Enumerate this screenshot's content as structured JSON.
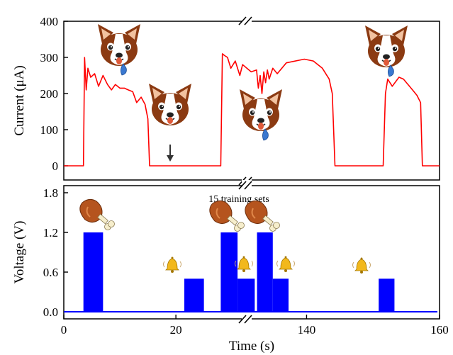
{
  "chart_data": [
    {
      "panel": "top",
      "type": "line",
      "title": "",
      "ylabel": "Current (μA)",
      "ylim": [
        0,
        400
      ],
      "yticks": [
        "0",
        "100",
        "200",
        "300",
        "400"
      ],
      "axis_break": true,
      "series": [
        {
          "color": "#ff0000",
          "x": [
            0,
            3.5,
            3.7,
            4.0,
            4.3,
            4.8,
            5.5,
            6.2,
            7.0,
            7.8,
            8.5,
            9.2,
            10.0,
            10.8,
            11.5,
            12.3,
            13.0,
            13.8,
            14.5,
            15.0,
            15.3,
            15.8,
            20,
            26,
            28.0,
            28.3,
            28.7,
            29.2,
            29.8,
            30.6,
            31.4,
            31.9,
            32.2,
            33.4,
            33.8,
            34.2,
            34.6,
            35.0,
            35.4,
            35.8,
            36.2,
            37.0,
            38.0,
            40,
            44,
            46,
            48,
            49.5,
            50.2,
            50.8,
            52,
            56,
            60,
            61.5,
            62.0,
            62.5,
            63.5,
            65,
            66,
            67,
            68,
            69,
            69.8,
            70.2,
            71,
            74
          ],
          "y": [
            0,
            0,
            300,
            210,
            270,
            245,
            255,
            220,
            250,
            225,
            210,
            225,
            215,
            215,
            210,
            205,
            175,
            190,
            170,
            130,
            0,
            0,
            0,
            0,
            0,
            310,
            305,
            300,
            270,
            290,
            250,
            280,
            260,
            265,
            215,
            250,
            200,
            260,
            230,
            265,
            240,
            270,
            255,
            285,
            295,
            290,
            270,
            240,
            200,
            0,
            0,
            0,
            0,
            0,
            200,
            240,
            220,
            245,
            240,
            225,
            210,
            195,
            175,
            0,
            0,
            0
          ]
        }
      ]
    },
    {
      "panel": "bottom",
      "type": "bar",
      "title": "",
      "xlabel": "Time (s)",
      "ylabel": "Voltage (V)",
      "ylim": [
        0,
        1.8
      ],
      "yticks": [
        "0.0",
        "0.6",
        "1.2",
        "1.8"
      ],
      "xticks": [
        "0",
        "20",
        "140",
        "160"
      ],
      "axis_break": true,
      "color": "#0000ff",
      "pulses": [
        {
          "x0": 3.5,
          "x1": 7.0,
          "v": 1.2
        },
        {
          "x0": 21.5,
          "x1": 25.0,
          "v": 0.5
        },
        {
          "x0": 28.0,
          "x1": 31.0,
          "v": 1.2
        },
        {
          "x0": 31.0,
          "x1": 33.0,
          "v": 0.5
        },
        {
          "x0": 33.5,
          "x1": 37.0,
          "v": 1.2
        },
        {
          "x0": 37.0,
          "x1": 40.5,
          "v": 0.5
        },
        {
          "x0": 60.5,
          "x1": 64.0,
          "v": 0.5
        }
      ],
      "annotation": "15 training sets"
    }
  ]
}
